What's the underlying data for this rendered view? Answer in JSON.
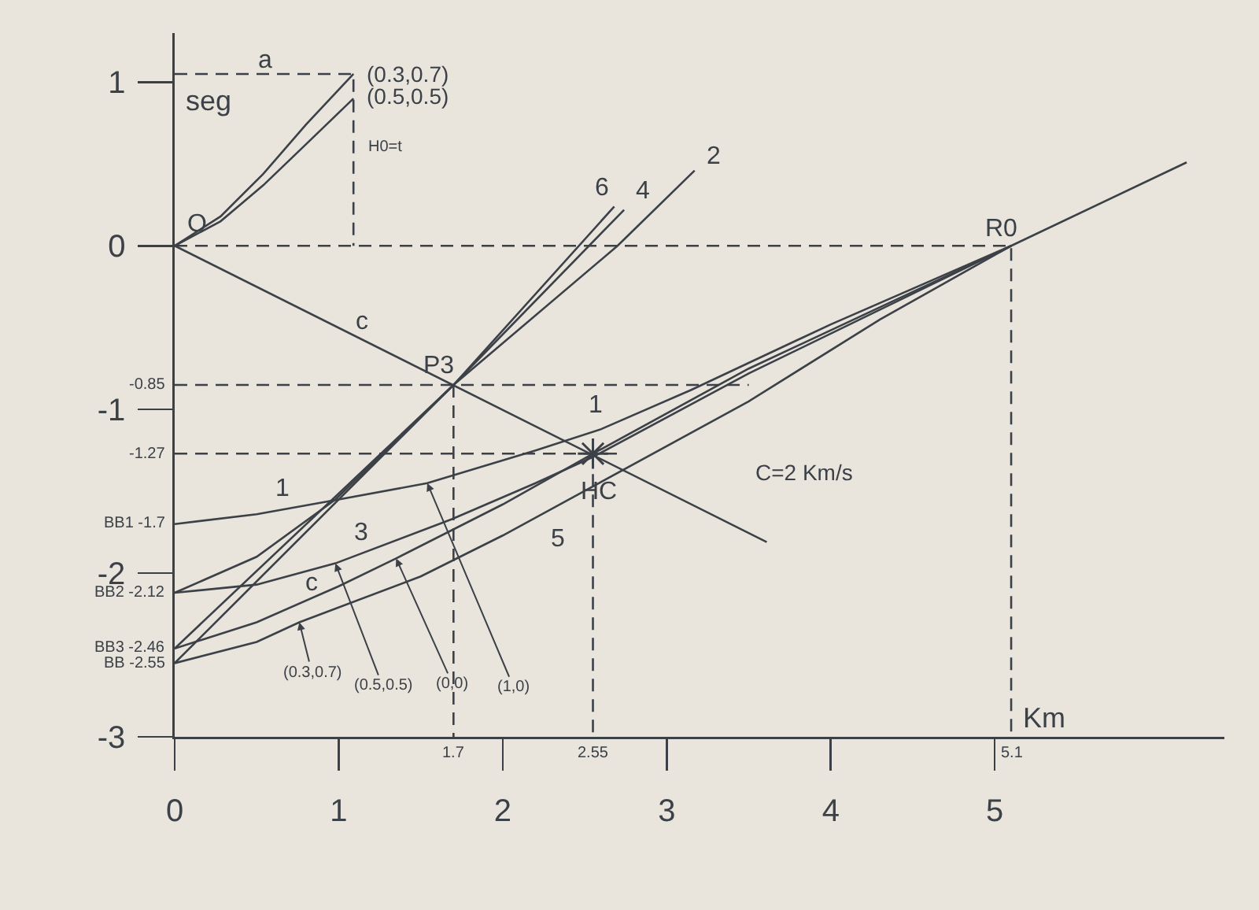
{
  "chart_data": {
    "type": "line",
    "xlabel": "Km",
    "ylabel": "seg",
    "xlim": [
      0,
      6.4
    ],
    "ylim": [
      -3,
      1.3
    ],
    "xticks": [
      0,
      1,
      2,
      3,
      4,
      5
    ],
    "yticks": [
      -3,
      -2,
      -1,
      0,
      1
    ],
    "grid": false,
    "marker": "none",
    "line_style": "solid",
    "series": [
      {
        "color": "#3c4148",
        "x": [
          0,
          0.28,
          0.54,
          0.8,
          1.09
        ],
        "values": [
          0,
          0.18,
          0.44,
          0.74,
          1.05
        ]
      },
      {
        "color": "#3c4148",
        "x": [
          0,
          0.28,
          0.54,
          0.8,
          1.09
        ],
        "values": [
          0,
          0.15,
          0.37,
          0.62,
          0.9
        ]
      },
      {
        "color": "#3c4148",
        "line_style": "dashed",
        "x": [
          0,
          1.09,
          1.09
        ],
        "values": [
          1.05,
          1.05,
          0
        ]
      },
      {
        "color": "#3c4148",
        "line_style": "dashed",
        "x": [
          0,
          5.1,
          5.1
        ],
        "values": [
          0,
          0,
          -3
        ]
      },
      {
        "color": "#3c4148",
        "line_style": "dashed",
        "x": [
          0,
          3.5
        ],
        "values": [
          -0.85,
          -0.85
        ]
      },
      {
        "color": "#3c4148",
        "line_style": "dashed",
        "x": [
          1.7,
          1.7
        ],
        "values": [
          -0.85,
          -3
        ]
      },
      {
        "color": "#3c4148",
        "line_style": "dashed",
        "x": [
          0,
          2.7
        ],
        "values": [
          -1.27,
          -1.27
        ]
      },
      {
        "color": "#3c4148",
        "line_style": "dashed",
        "x": [
          2.55,
          2.55
        ],
        "values": [
          -1.27,
          -3
        ]
      },
      {
        "color": "#3c4148",
        "x": [
          0,
          3.61
        ],
        "values": [
          0,
          -1.81
        ]
      },
      {
        "color": "#3c4148",
        "x": [
          0,
          1.7,
          2.68
        ],
        "values": [
          -2.55,
          -0.85,
          0.24
        ]
      },
      {
        "color": "#3c4148",
        "x": [
          0,
          1.7,
          2.74
        ],
        "values": [
          -2.46,
          -0.85,
          0.22
        ]
      },
      {
        "color": "#3c4148",
        "x": [
          0,
          0.5,
          0.98,
          1.7,
          2.7,
          3.17
        ],
        "values": [
          -2.12,
          -1.9,
          -1.55,
          -0.85,
          0,
          0.46
        ]
      },
      {
        "color": "#3c4148",
        "x": [
          0,
          0.5,
          1,
          1.54,
          2.2,
          2.6,
          3.15,
          4,
          5.1
        ],
        "values": [
          -1.7,
          -1.64,
          -1.55,
          -1.45,
          -1.25,
          -1.12,
          -0.88,
          -0.48,
          0
        ]
      },
      {
        "color": "#3c4148",
        "x": [
          0,
          0.5,
          0.98,
          1.69,
          2.2,
          2.55,
          3.5,
          5.1
        ],
        "values": [
          -2.12,
          -2.07,
          -1.94,
          -1.67,
          -1.45,
          -1.29,
          -0.78,
          0
        ]
      },
      {
        "color": "#3c4148",
        "x": [
          0,
          0.5,
          1,
          1.35,
          2,
          2.55,
          3.5,
          5.1,
          6.17
        ],
        "values": [
          -2.46,
          -2.3,
          -2.08,
          -1.91,
          -1.58,
          -1.27,
          -0.75,
          0,
          0.51
        ]
      },
      {
        "color": "#3c4148",
        "x": [
          0,
          0.5,
          0.76,
          1.5,
          2,
          2.55,
          3.5,
          4.3,
          5.1
        ],
        "values": [
          -2.55,
          -2.42,
          -2.3,
          -2.02,
          -1.77,
          -1.47,
          -0.95,
          -0.45,
          0
        ]
      },
      {
        "type": "scatter",
        "marker": "cross",
        "color": "#3c4148",
        "x": [
          2.55
        ],
        "values": [
          -1.27
        ]
      }
    ],
    "annotations": [
      {
        "text": "(0.3,0.7)",
        "x": 0.76,
        "y": -2.3
      },
      {
        "text": "(0.5,0.5)",
        "x": 0.98,
        "y": -1.94
      },
      {
        "text": "(0,0)",
        "x": 1.35,
        "y": -1.91
      },
      {
        "text": "(1,0)",
        "x": 1.54,
        "y": -1.45
      },
      {
        "text": "(0.3,0.7)",
        "x": 1.09,
        "y": 1.05
      },
      {
        "text": "(0.5,0.5)",
        "x": 1.09,
        "y": 0.9
      },
      {
        "text": "a",
        "x": 0.55,
        "y": 1.05
      },
      {
        "text": "H0=t",
        "x": 1.09,
        "y": 0.6
      },
      {
        "text": "O",
        "x": 0,
        "y": 0
      },
      {
        "text": "c",
        "x": 1.14,
        "y": -0.57
      },
      {
        "text": "P3",
        "x": 1.7,
        "y": -0.85
      },
      {
        "text": "HC",
        "x": 2.55,
        "y": -1.27
      },
      {
        "text": "C=2 Km/s",
        "x": 3.2,
        "y": -1.6
      },
      {
        "text": "R0",
        "x": 5.1,
        "y": 0
      },
      {
        "text": "6",
        "x": 2.68,
        "y": 0.24
      },
      {
        "text": "4",
        "x": 2.74,
        "y": 0.22
      },
      {
        "text": "2",
        "x": 3.17,
        "y": 0.46
      },
      {
        "text": "1",
        "x": 0.66,
        "y": -1.61
      },
      {
        "text": "1",
        "x": 2.6,
        "y": -1.12
      },
      {
        "text": "3",
        "x": 1.14,
        "y": -1.88
      },
      {
        "text": "c",
        "x": 0.83,
        "y": -2.15
      },
      {
        "text": "5",
        "x": 2.24,
        "y": -1.64
      },
      {
        "text": "-0.85",
        "x": 0,
        "y": -0.85
      },
      {
        "text": "-1.27",
        "x": 0,
        "y": -1.27
      },
      {
        "text": "BB1 -1.7",
        "x": 0,
        "y": -1.7
      },
      {
        "text": "BB2 -2.12",
        "x": 0,
        "y": -2.12
      },
      {
        "text": "BB3 -2.46",
        "x": 0,
        "y": -2.46
      },
      {
        "text": "BB -2.55",
        "x": 0,
        "y": -2.55
      },
      {
        "text": "1.7",
        "x": 1.7,
        "y": -3
      },
      {
        "text": "2.55",
        "x": 2.55,
        "y": -3
      },
      {
        "text": "5.1",
        "x": 5.1,
        "y": -3
      }
    ]
  }
}
